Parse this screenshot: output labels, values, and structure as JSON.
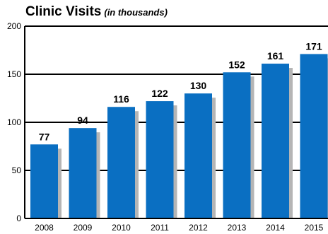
{
  "chart_data": {
    "type": "bar",
    "title": "Clinic Visits",
    "subtitle": "(in thousands)",
    "categories": [
      "2008",
      "2009",
      "2010",
      "2011",
      "2012",
      "2013",
      "2014",
      "2015"
    ],
    "values": [
      77,
      94,
      116,
      122,
      130,
      152,
      161,
      171
    ],
    "xlabel": "",
    "ylabel": "",
    "ylim": [
      0,
      200
    ],
    "yticks": [
      0,
      50,
      100,
      150,
      200
    ],
    "grid": true,
    "legend": "none",
    "bar_color": "#0a6fc2",
    "shadow_color": "#b5b5b5",
    "show_data_labels": true
  }
}
